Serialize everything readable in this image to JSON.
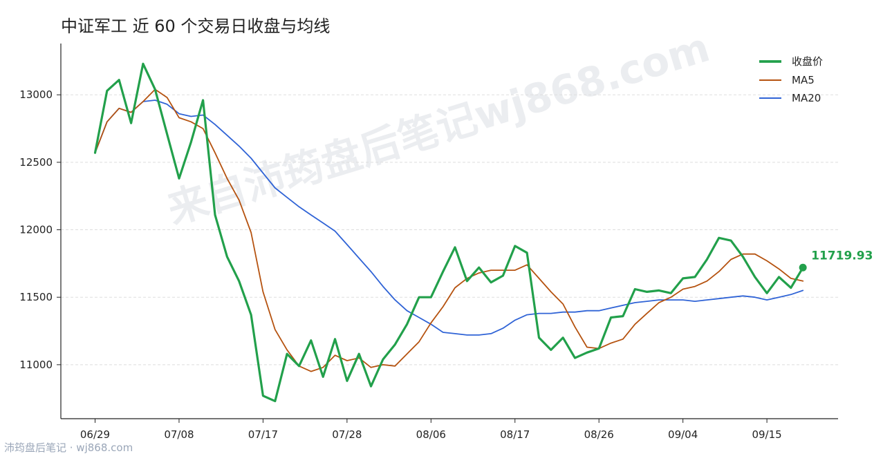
{
  "title": "中证军工 近 60 个交易日收盘与均线",
  "watermark": "来自沛筠盘后笔记wj868.com",
  "corner_text": "沛筠盘后笔记 · wj868.com",
  "colors": {
    "close": "#22a04b",
    "ma5": "#b5520f",
    "ma20": "#2f63d6",
    "grid": "#dddddd"
  },
  "chart_data": {
    "type": "line",
    "title": "中证军工 近 60 个交易日收盘与均线",
    "xlabel": "",
    "ylabel": "",
    "ylim": [
      10600,
      13380
    ],
    "yticks": [
      11000,
      11500,
      12000,
      12500,
      13000
    ],
    "grid": "horizontal-dashed",
    "legend": "top-right",
    "x_tick_labels": [
      {
        "index": 0,
        "label": "06/29"
      },
      {
        "index": 7,
        "label": "07/08"
      },
      {
        "index": 14,
        "label": "07/17"
      },
      {
        "index": 21,
        "label": "07/28"
      },
      {
        "index": 28,
        "label": "08/06"
      },
      {
        "index": 35,
        "label": "08/17"
      },
      {
        "index": 42,
        "label": "08/26"
      },
      {
        "index": 49,
        "label": "09/04"
      },
      {
        "index": 56,
        "label": "09/15"
      }
    ],
    "last_value_label": "11719.93",
    "series": [
      {
        "name": "收盘价",
        "values": [
          12570,
          13030,
          13110,
          12790,
          13230,
          13040,
          12710,
          12380,
          12650,
          12960,
          12110,
          11800,
          11620,
          11370,
          10770,
          10730,
          11080,
          10990,
          11180,
          10910,
          11190,
          10880,
          11080,
          10840,
          11040,
          11150,
          11300,
          11500,
          11500,
          11690,
          11870,
          11620,
          11720,
          11610,
          11660,
          11880,
          11830,
          11200,
          11110,
          11200,
          11050,
          11090,
          11120,
          11350,
          11360,
          11560,
          11540,
          11550,
          11530,
          11640,
          11650,
          11780,
          11940,
          11920,
          11800,
          11650,
          11530,
          11650,
          11570,
          11719.93
        ]
      },
      {
        "name": "MA5",
        "values": [
          12570,
          12800,
          12900,
          12870,
          12950,
          13040,
          12980,
          12830,
          12800,
          12750,
          12570,
          12380,
          12220,
          11980,
          11540,
          11260,
          11110,
          10990,
          10950,
          10980,
          11070,
          11030,
          11050,
          10980,
          11000,
          10990,
          11080,
          11170,
          11310,
          11430,
          11570,
          11640,
          11680,
          11700,
          11700,
          11700,
          11740,
          11640,
          11540,
          11450,
          11280,
          11130,
          11120,
          11160,
          11190,
          11300,
          11380,
          11460,
          11500,
          11560,
          11580,
          11620,
          11690,
          11780,
          11820,
          11820,
          11770,
          11710,
          11640,
          11620
        ]
      },
      {
        "name": "MA20",
        "values": [
          12570,
          12800,
          12900,
          12870,
          12950,
          12960,
          12930,
          12860,
          12840,
          12850,
          12780,
          12700,
          12620,
          12530,
          12420,
          12310,
          12240,
          12170,
          12110,
          12050,
          11990,
          11890,
          11790,
          11690,
          11580,
          11480,
          11400,
          11350,
          11300,
          11240,
          11230,
          11220,
          11220,
          11230,
          11270,
          11330,
          11370,
          11380,
          11380,
          11390,
          11390,
          11400,
          11400,
          11420,
          11440,
          11460,
          11470,
          11480,
          11480,
          11480,
          11470,
          11480,
          11490,
          11500,
          11510,
          11500,
          11480,
          11500,
          11520,
          11550
        ]
      }
    ]
  }
}
